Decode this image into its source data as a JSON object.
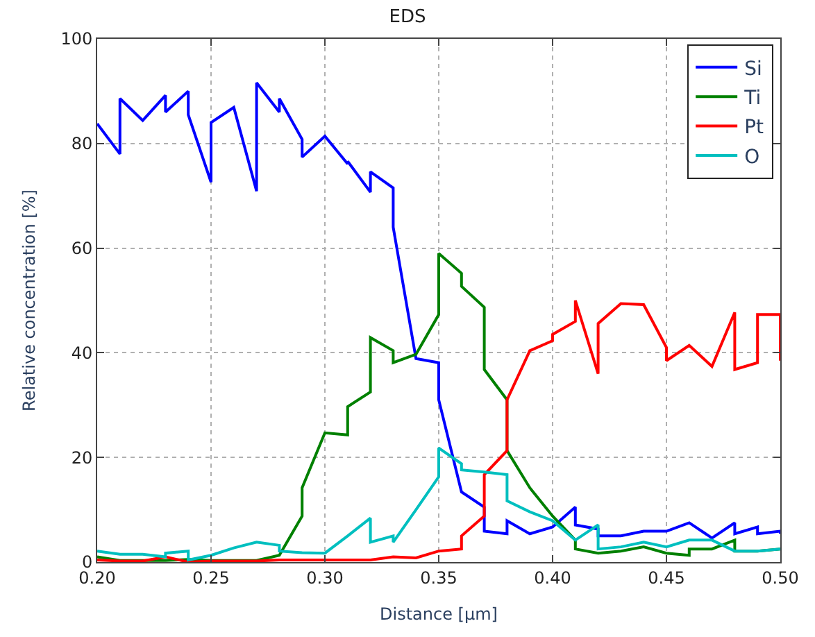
{
  "chart_data": {
    "type": "line",
    "title": "EDS",
    "xlabel": "Distance [μm]",
    "ylabel": "Relative concentration [%]",
    "xlim": [
      0.2,
      0.5
    ],
    "xticks": [
      {
        "value": 0.2,
        "label": "0.20"
      },
      {
        "value": 0.25,
        "label": "0.25"
      },
      {
        "value": 0.3,
        "label": "0.30"
      },
      {
        "value": 0.35,
        "label": "0.35"
      },
      {
        "value": 0.4,
        "label": "0.40"
      },
      {
        "value": 0.45,
        "label": "0.45"
      },
      {
        "value": 0.5,
        "label": "0.50"
      }
    ],
    "ylim": [
      0,
      100
    ],
    "yticks": [
      0,
      20,
      40,
      60,
      80,
      100
    ],
    "grid": true,
    "legend": "top right",
    "marker": "none",
    "line_style": "solid",
    "series": [
      {
        "name": "Si",
        "color": "#0000ff",
        "x": [
          0.2,
          0.21,
          0.21,
          0.22,
          0.23,
          0.23,
          0.24,
          0.24,
          0.25,
          0.25,
          0.26,
          0.27,
          0.27,
          0.28,
          0.28,
          0.29,
          0.29,
          0.3,
          0.31,
          0.31,
          0.32,
          0.32,
          0.33,
          0.33,
          0.34,
          0.35,
          0.35,
          0.36,
          0.37,
          0.37,
          0.38,
          0.38,
          0.39,
          0.4,
          0.41,
          0.41,
          0.42,
          0.42,
          0.43,
          0.44,
          0.45,
          0.46,
          0.47,
          0.48,
          0.48,
          0.49,
          0.49,
          0.5,
          0.5
        ],
        "values": [
          83.8,
          78,
          88.6,
          84.4,
          89.2,
          86,
          90,
          85.5,
          72.6,
          84,
          86.9,
          70.9,
          91.6,
          86,
          88.6,
          80.8,
          77.4,
          81.4,
          76.1,
          76.6,
          70.7,
          74.6,
          71.5,
          64,
          38.9,
          38.1,
          31,
          13.4,
          10.5,
          5.9,
          5.4,
          7.9,
          5.4,
          6.7,
          10.5,
          7.1,
          6.3,
          5,
          5,
          5.9,
          5.9,
          7.5,
          4.6,
          7.5,
          5.4,
          6.7,
          5.4,
          5.9,
          5.4
        ]
      },
      {
        "name": "Ti",
        "color": "#008000",
        "x": [
          0.2,
          0.21,
          0.22,
          0.23,
          0.24,
          0.25,
          0.26,
          0.27,
          0.28,
          0.29,
          0.29,
          0.3,
          0.31,
          0.31,
          0.32,
          0.32,
          0.33,
          0.33,
          0.34,
          0.35,
          0.35,
          0.36,
          0.36,
          0.37,
          0.37,
          0.38,
          0.38,
          0.39,
          0.4,
          0.41,
          0.41,
          0.42,
          0.43,
          0.44,
          0.45,
          0.46,
          0.46,
          0.47,
          0.48,
          0.48,
          0.49,
          0.5
        ],
        "values": [
          1,
          0.3,
          0.3,
          0.3,
          0.5,
          0.3,
          0.3,
          0.3,
          1.3,
          8.8,
          14.2,
          24.7,
          24.3,
          29.7,
          32.5,
          42.9,
          40.4,
          38.1,
          39.7,
          47.3,
          59,
          55.2,
          52.7,
          48.7,
          36.8,
          31,
          21.3,
          14.2,
          8.8,
          4.2,
          2.5,
          1.7,
          2.1,
          2.9,
          1.7,
          1.3,
          2.5,
          2.5,
          4.2,
          2.1,
          2.1,
          2.5
        ]
      },
      {
        "name": "Pt",
        "color": "#ff0000",
        "x": [
          0.2,
          0.21,
          0.22,
          0.23,
          0.24,
          0.25,
          0.26,
          0.27,
          0.28,
          0.29,
          0.3,
          0.31,
          0.32,
          0.33,
          0.34,
          0.35,
          0.36,
          0.36,
          0.37,
          0.37,
          0.38,
          0.38,
          0.39,
          0.4,
          0.4,
          0.41,
          0.41,
          0.42,
          0.42,
          0.43,
          0.44,
          0.45,
          0.45,
          0.46,
          0.47,
          0.48,
          0.48,
          0.49,
          0.49,
          0.5,
          0.5
        ],
        "values": [
          0.4,
          0.2,
          0.2,
          1,
          0,
          0.2,
          0.2,
          0.2,
          0.4,
          0.4,
          0.4,
          0.4,
          0.4,
          1,
          0.8,
          2.1,
          2.5,
          5,
          8.8,
          16.7,
          21.3,
          31,
          40.4,
          42.3,
          43.5,
          46,
          50,
          36,
          45.6,
          49.4,
          49.2,
          41,
          38.5,
          41.4,
          37.4,
          47.7,
          36.8,
          38.1,
          47.3,
          47.3,
          38.5
        ]
      },
      {
        "name": "O",
        "color": "#00bfbf",
        "x": [
          0.2,
          0.21,
          0.22,
          0.23,
          0.23,
          0.24,
          0.24,
          0.25,
          0.26,
          0.27,
          0.28,
          0.28,
          0.29,
          0.3,
          0.31,
          0.32,
          0.32,
          0.33,
          0.33,
          0.34,
          0.35,
          0.35,
          0.36,
          0.36,
          0.37,
          0.38,
          0.38,
          0.39,
          0.4,
          0.41,
          0.42,
          0.42,
          0.43,
          0.44,
          0.45,
          0.46,
          0.47,
          0.48,
          0.49,
          0.5
        ],
        "values": [
          2.1,
          1.5,
          1.5,
          1,
          1.7,
          2.1,
          0.4,
          1.3,
          2.7,
          3.8,
          3.2,
          2.1,
          1.8,
          1.7,
          5,
          8.4,
          3.8,
          5,
          3.8,
          10,
          16.3,
          21.8,
          18.8,
          17.6,
          17.2,
          16.7,
          11.7,
          9.6,
          7.9,
          4.2,
          7.1,
          2.5,
          2.9,
          3.8,
          2.9,
          4.2,
          4.2,
          2.1,
          2.1,
          2.5
        ]
      }
    ]
  }
}
